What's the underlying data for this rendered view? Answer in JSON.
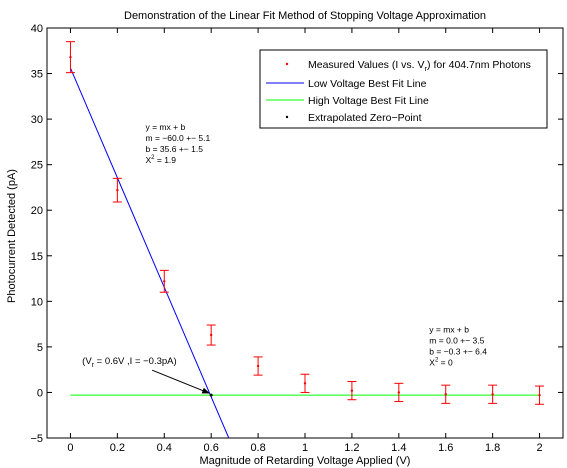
{
  "chart_data": {
    "type": "scatter",
    "title": "Demonstration of the Linear Fit Method of Stopping Voltage Approximation",
    "xlabel": "Magnitude of Retarding Voltage Applied (V)",
    "ylabel": "Photocurrent Detected (pA)",
    "xlim": [
      -0.1,
      2.1
    ],
    "ylim": [
      -5,
      40
    ],
    "xticks": [
      0,
      0.2,
      0.4,
      0.6,
      0.8,
      1,
      1.2,
      1.4,
      1.6,
      1.8,
      2
    ],
    "xtick_labels": [
      "0",
      "0.2",
      "0.4",
      "0.6",
      "0.8",
      "1",
      "1.2",
      "1.4",
      "1.6",
      "1.8",
      "2"
    ],
    "yticks": [
      -5,
      0,
      5,
      10,
      15,
      20,
      25,
      30,
      35,
      40
    ],
    "ytick_labels": [
      "−5",
      "0",
      "5",
      "10",
      "15",
      "20",
      "25",
      "30",
      "35",
      "40"
    ],
    "grid": false,
    "legend_position": "top-right",
    "series": [
      {
        "name": "Measured Values (I vs. V) for 404.7nm Photons",
        "name_prefix": "Measured Values (I vs. V",
        "name_subscript": "r",
        "name_suffix": ") for 404.7nm Photons",
        "kind": "errorbar",
        "color": "#ff0000",
        "x": [
          0,
          0.2,
          0.4,
          0.6,
          0.8,
          1.0,
          1.2,
          1.4,
          1.6,
          1.8,
          2.0
        ],
        "y": [
          36.8,
          22.2,
          12.2,
          6.3,
          2.9,
          1.0,
          0.2,
          0.0,
          -0.2,
          -0.2,
          -0.3
        ],
        "yerr": [
          1.7,
          1.3,
          1.2,
          1.1,
          1.0,
          1.0,
          1.0,
          1.0,
          1.0,
          1.0,
          1.0
        ]
      },
      {
        "name": "Low Voltage Best Fit Line",
        "kind": "line",
        "color": "#0000ff",
        "x": [
          0,
          0.675
        ],
        "y": [
          35.6,
          -5
        ]
      },
      {
        "name": "High Voltage Best Fit Line",
        "kind": "line",
        "color": "#00ff00",
        "x": [
          0,
          2
        ],
        "y": [
          -0.3,
          -0.3
        ]
      },
      {
        "name": "Extrapolated Zero−Point",
        "kind": "point",
        "color": "#000000",
        "x": [
          0.6
        ],
        "y": [
          -0.3
        ]
      }
    ],
    "annotations": {
      "low_fit": {
        "x": 0.32,
        "y": 28.8,
        "lines": [
          "y = mx + b",
          "m = −60.0 +− 5.1",
          "b = 35.6 +− 1.5"
        ],
        "chi_prefix": "X",
        "chi_sup": "2",
        "chi_suffix": " = 1.9"
      },
      "high_fit": {
        "x": 1.53,
        "y": 6.6,
        "lines": [
          "y = mx + b",
          "m = 0.0 +− 3.5",
          "b = −0.3 +− 6.4"
        ],
        "chi_prefix": "X",
        "chi_sup": "2",
        "chi_suffix": " = 0"
      },
      "zero_point": {
        "x": 0.05,
        "y": 3.1,
        "arrow_to_x": 0.6,
        "arrow_to_y": -0.3,
        "prefix": "(V",
        "subscript": "r",
        "suffix": " = 0.6V ,I = −0.3pA)"
      }
    }
  }
}
